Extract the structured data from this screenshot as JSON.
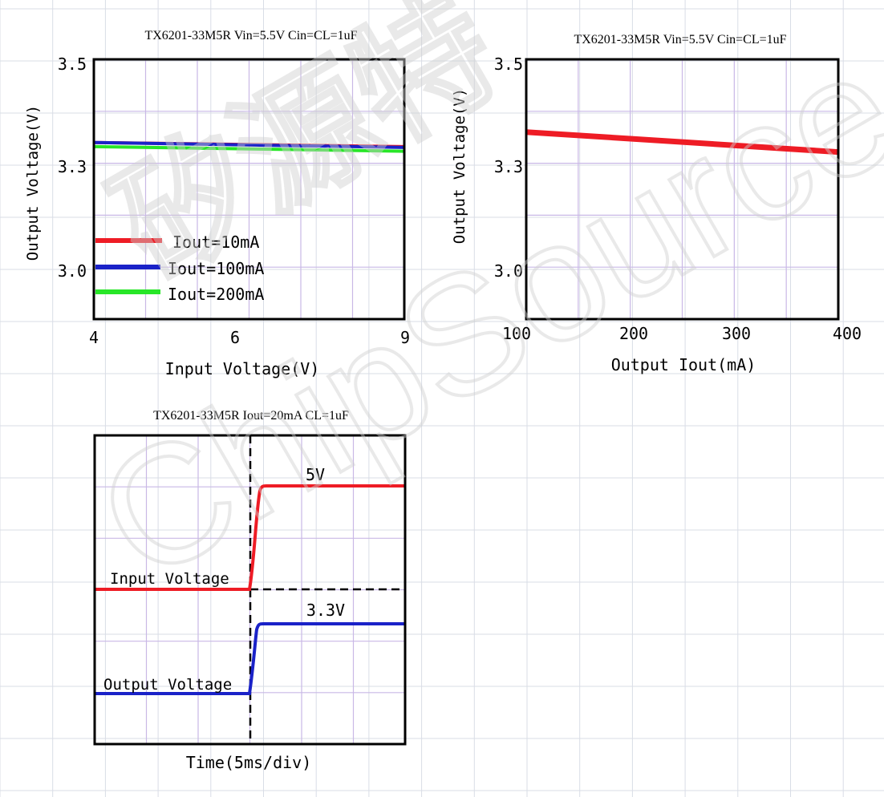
{
  "colors": {
    "page_grid": "#d9dde6",
    "plot_grid": "#c9b8e6",
    "frame": "#000000",
    "red": "#ee1c25",
    "blue": "#1a22c8",
    "green": "#28e628",
    "watermark": "#d3d3d3"
  },
  "watermark": {
    "line1": "矽源特",
    "line2": "ChipSource"
  },
  "chart_data": [
    {
      "type": "line",
      "title": "TX6201-33M5R Vin=5.5V Cin=CL=1uF",
      "xlabel": "Input Voltage(V)",
      "ylabel": "Output Voltage(V)",
      "xlim": [
        4,
        9
      ],
      "ylim": [
        2.875,
        3.5
      ],
      "x_ticks": [
        "4",
        "6",
        "9"
      ],
      "y_ticks": [
        "3.5",
        "3.3",
        "3.0"
      ],
      "legend_position": "bottom-left",
      "series": [
        {
          "name": "Iout=10mA",
          "color": "#ee1c25",
          "x": [
            4,
            9
          ],
          "y": [
            3.3,
            3.29
          ]
        },
        {
          "name": "Iout=100mA",
          "color": "#1a22c8",
          "x": [
            4,
            9
          ],
          "y": [
            3.3,
            3.288
          ]
        },
        {
          "name": "Iout=200mA",
          "color": "#28e628",
          "x": [
            4,
            9
          ],
          "y": [
            3.29,
            3.279
          ]
        }
      ]
    },
    {
      "type": "line",
      "title": "TX6201-33M5R Vin=5.5V Cin=CL=1uF",
      "xlabel": "Output Iout(mA)",
      "ylabel": "Output Voltage(V)",
      "xlim": [
        100,
        400
      ],
      "ylim": [
        2.875,
        3.5
      ],
      "x_ticks": [
        "100",
        "200",
        "300",
        "400"
      ],
      "y_ticks": [
        "3.5",
        "3.3",
        "3.0"
      ],
      "series": [
        {
          "color": "#ee1c25",
          "x": [
            100,
            400
          ],
          "y": [
            3.325,
            3.277
          ]
        }
      ]
    },
    {
      "type": "line",
      "title": "TX6201-33M5R Iout=20mA CL=1uF",
      "xlabel": "Time(5ms/div)",
      "ylabel": "",
      "annotations": [
        "5V",
        "3.3V"
      ],
      "series": [
        {
          "name": "Input Voltage",
          "color": "#ee1c25"
        },
        {
          "name": "Output Voltage",
          "color": "#1a22c8"
        }
      ]
    }
  ]
}
